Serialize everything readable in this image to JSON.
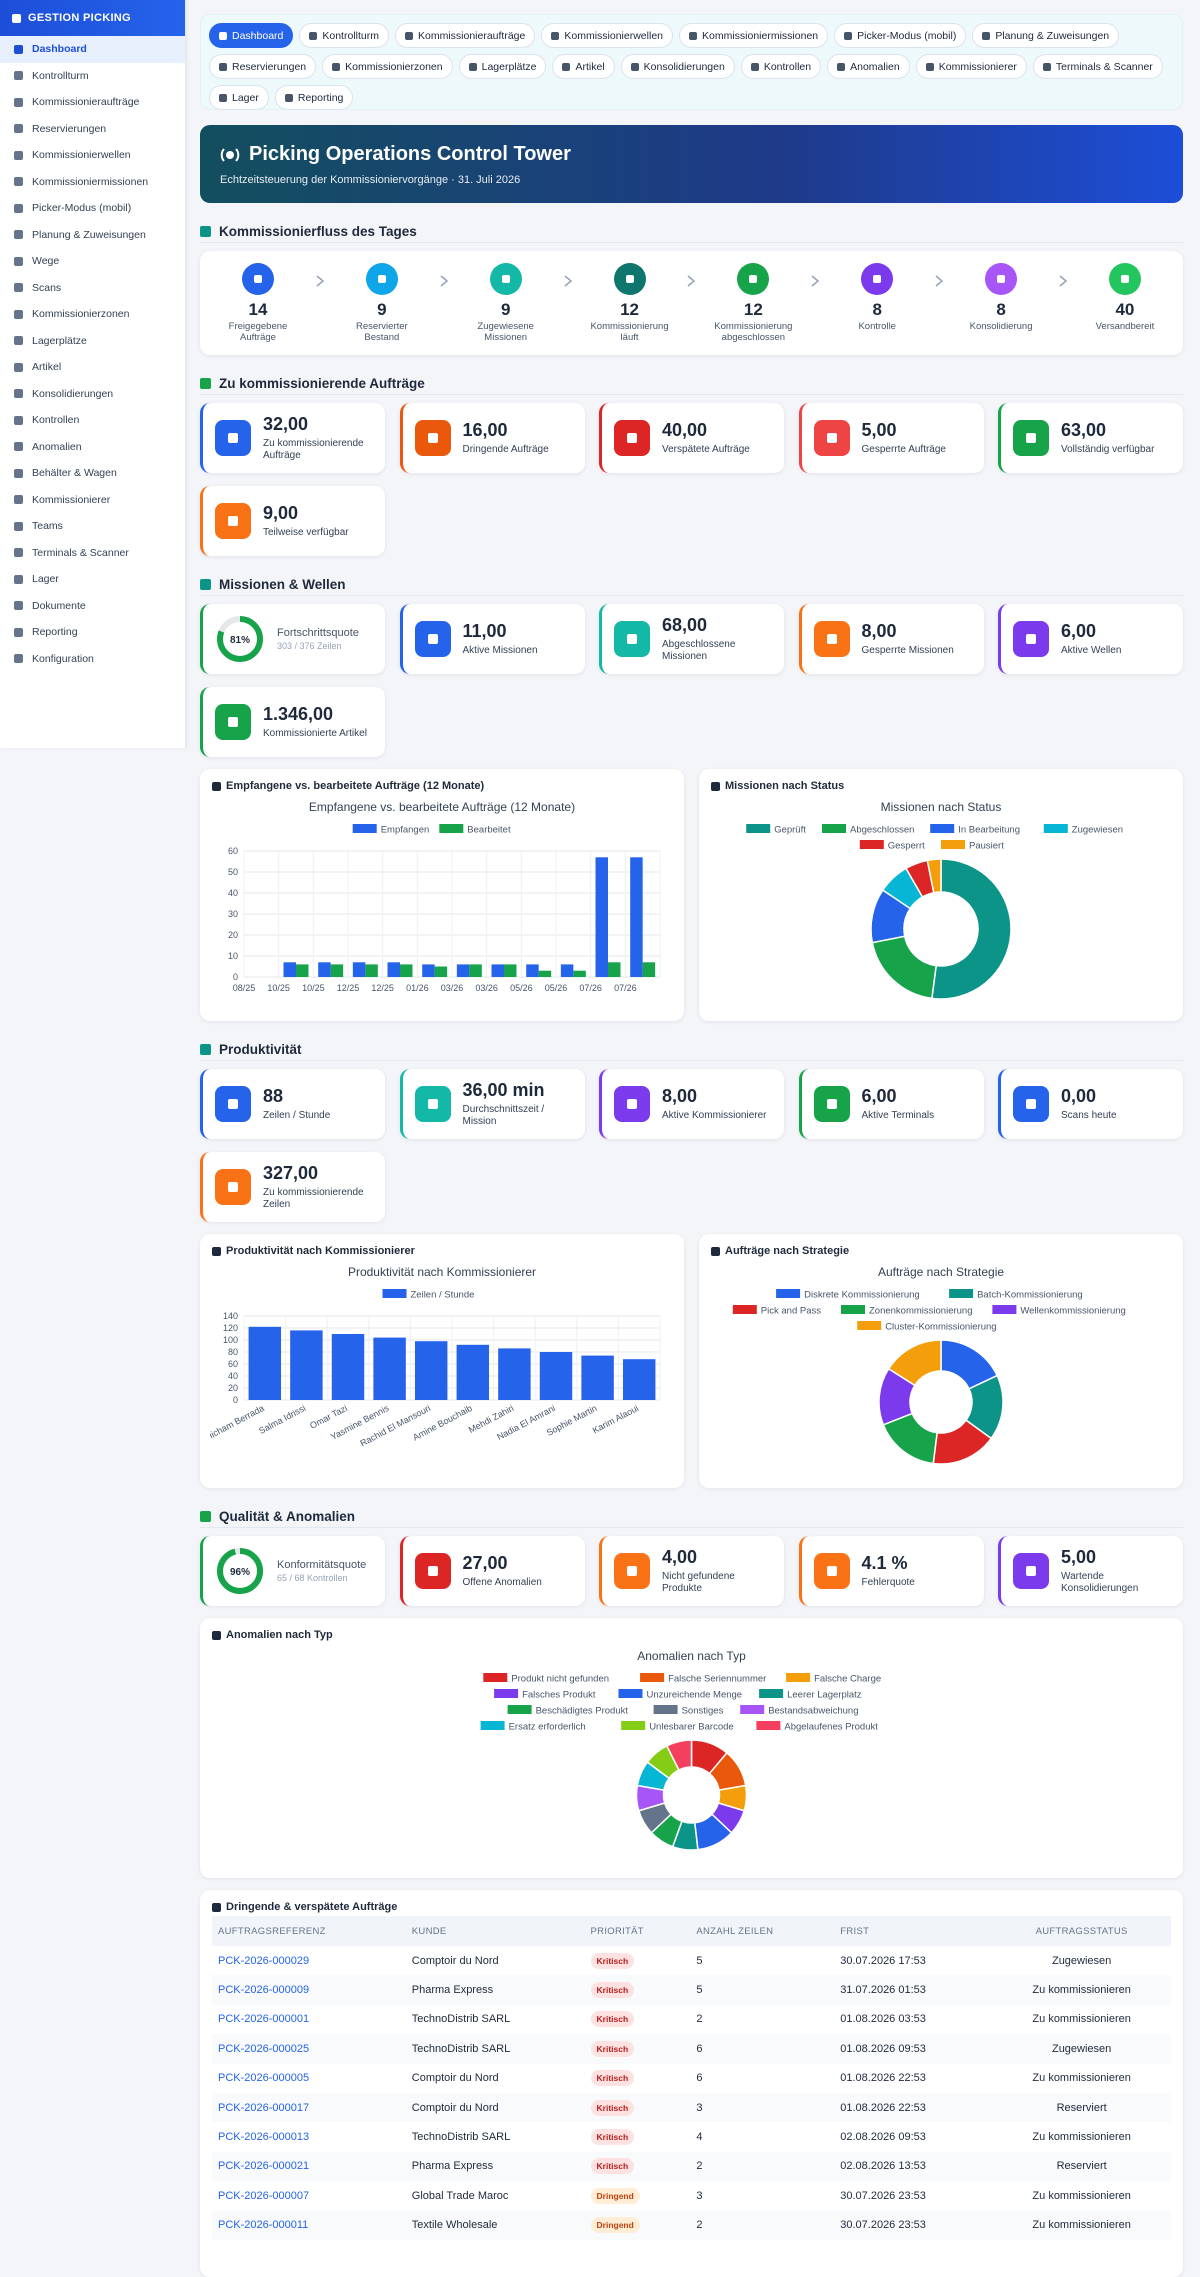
{
  "sidebar": {
    "brand": "GESTION PICKING",
    "items": [
      "Dashboard",
      "Kontrollturm",
      "Kommissionieraufträge",
      "Reservierungen",
      "Kommissionierwellen",
      "Kommissioniermissionen",
      "Picker-Modus (mobil)",
      "Planung & Zuweisungen",
      "Wege",
      "Scans",
      "Kommissionierzonen",
      "Lagerplätze",
      "Artikel",
      "Konsolidierungen",
      "Kontrollen",
      "Anomalien",
      "Behälter & Wagen",
      "Kommissionierer",
      "Teams",
      "Terminals & Scanner",
      "Lager",
      "Dokumente",
      "Reporting",
      "Konfiguration"
    ]
  },
  "tabs": [
    "Dashboard",
    "Kontrollturm",
    "Kommissionieraufträge",
    "Kommissionierwellen",
    "Kommissioniermissionen",
    "Picker-Modus (mobil)",
    "Planung & Zuweisungen",
    "Reservierungen",
    "Kommissionierzonen",
    "Lagerplätze",
    "Artikel",
    "Konsolidierungen",
    "Kontrollen",
    "Anomalien",
    "Kommissionierer",
    "Terminals & Scanner",
    "Lager",
    "Reporting"
  ],
  "hero": {
    "title": "Picking Operations Control Tower",
    "subtitle": "Echtzeitsteuerung der Kommissioniervorgänge · 31. Juli 2026"
  },
  "flow": {
    "title": "Kommissionierfluss des Tages",
    "steps": [
      {
        "value": 14,
        "label": "Freigegebene Aufträge",
        "color": "#2563eb"
      },
      {
        "value": 9,
        "label": "Reservierter Bestand",
        "color": "#0ea5e9"
      },
      {
        "value": 9,
        "label": "Zugewiesene Missionen",
        "color": "#14b8a6"
      },
      {
        "value": 12,
        "label": "Kommissionierung läuft",
        "color": "#0f766e"
      },
      {
        "value": 12,
        "label": "Kommissionierung abgeschlossen",
        "color": "#16a34a"
      },
      {
        "value": 8,
        "label": "Kontrolle",
        "color": "#7c3aed"
      },
      {
        "value": 8,
        "label": "Konsolidierung",
        "color": "#a855f7"
      },
      {
        "value": 40,
        "label": "Versandbereit",
        "color": "#22c55e"
      }
    ]
  },
  "orders": {
    "title": "Zu kommissionierende Aufträge",
    "cards": [
      {
        "value": "32,00",
        "label": "Zu kommissionierende Aufträge",
        "color": "#2563eb"
      },
      {
        "value": "16,00",
        "label": "Dringende Aufträge",
        "color": "#ea580c"
      },
      {
        "value": "40,00",
        "label": "Verspätete Aufträge",
        "color": "#dc2626"
      },
      {
        "value": "5,00",
        "label": "Gesperrte Aufträge",
        "color": "#ef4444"
      },
      {
        "value": "63,00",
        "label": "Vollständig verfügbar",
        "color": "#16a34a"
      },
      {
        "value": "9,00",
        "label": "Teilweise verfügbar",
        "color": "#f97316"
      }
    ]
  },
  "missions": {
    "title": "Missionen & Wellen",
    "cards": [
      {
        "ring": {
          "value": 81,
          "label": "81%"
        },
        "label": "Fortschrittsquote",
        "sub": "303 / 376 Zeilen",
        "color": "#16a34a"
      },
      {
        "value": "11,00",
        "label": "Aktive Missionen",
        "color": "#2563eb"
      },
      {
        "value": "68,00",
        "label": "Abgeschlossene Missionen",
        "color": "#14b8a6"
      },
      {
        "value": "8,00",
        "label": "Gesperrte Missionen",
        "color": "#f97316"
      },
      {
        "value": "6,00",
        "label": "Aktive Wellen",
        "color": "#7c3aed"
      },
      {
        "value": "1.346,00",
        "label": "Kommissionierte Artikel",
        "color": "#16a34a"
      }
    ]
  },
  "productivity": {
    "title": "Produktivität",
    "cards": [
      {
        "value": "88",
        "label": "Zeilen / Stunde",
        "color": "#2563eb"
      },
      {
        "value": "36,00 min",
        "label": "Durchschnittszeit / Mission",
        "color": "#14b8a6"
      },
      {
        "value": "8,00",
        "label": "Aktive Kommissionierer",
        "color": "#7c3aed"
      },
      {
        "value": "6,00",
        "label": "Aktive Terminals",
        "color": "#16a34a"
      },
      {
        "value": "0,00",
        "label": "Scans heute",
        "color": "#2563eb"
      },
      {
        "value": "327,00",
        "label": "Zu kommissionierende Zeilen",
        "color": "#f97316"
      }
    ]
  },
  "quality": {
    "title": "Qualität & Anomalien",
    "cards": [
      {
        "ring": {
          "value": 96,
          "label": "96%"
        },
        "label": "Konformitätsquote",
        "sub": "65 / 68 Kontrollen",
        "color": "#16a34a"
      },
      {
        "value": "27,00",
        "label": "Offene Anomalien",
        "color": "#dc2626"
      },
      {
        "value": "4,00",
        "label": "Nicht gefundene Produkte",
        "color": "#f97316"
      },
      {
        "value": "4.1 %",
        "label": "Fehlerquote",
        "color": "#f97316"
      },
      {
        "value": "5,00",
        "label": "Wartende Konsolidierungen",
        "color": "#7c3aed"
      }
    ]
  },
  "chart_data": [
    {
      "type": "bar",
      "card_title": "Empfangene vs. bearbeitete Aufträge (12 Monate)",
      "title": "Empfangene vs. bearbeitete Aufträge (12 Monate)",
      "categories": [
        "08/25",
        "10/25",
        "10/25",
        "12/25",
        "12/25",
        "01/26",
        "03/26",
        "03/26",
        "05/26",
        "05/26",
        "07/26",
        "07/26"
      ],
      "series": [
        {
          "name": "Empfangen",
          "color": "#2563eb",
          "values": [
            null,
            7,
            7,
            7,
            7,
            6,
            6,
            6,
            6,
            6,
            57,
            57
          ]
        },
        {
          "name": "Bearbeitet",
          "color": "#16a34a",
          "values": [
            null,
            6,
            6,
            6,
            6,
            5,
            6,
            6,
            3,
            3,
            7,
            7
          ]
        }
      ],
      "ylim": [
        0,
        60
      ],
      "yticks": [
        0,
        10,
        20,
        30,
        40,
        50,
        60
      ],
      "grid": true
    },
    {
      "type": "pie",
      "card_title": "Missionen nach Status",
      "title": "Missionen nach Status",
      "categories": [
        "Geprüft",
        "Abgeschlossen",
        "In Bearbeitung",
        "Zugewiesen",
        "Gesperrt",
        "Pausiert"
      ],
      "values": [
        50,
        19,
        12,
        7,
        5,
        3
      ],
      "colors": [
        "#0d9488",
        "#16a34a",
        "#2563eb",
        "#06b6d4",
        "#dc2626",
        "#f59e0b"
      ]
    },
    {
      "type": "bar",
      "card_title": "Produktivität nach Kommissionierer",
      "title": "Produktivität nach Kommissionierer",
      "categories": [
        "Hicham Berrada",
        "Salma Idrissi",
        "Omar Tazi",
        "Yasmine Bennis",
        "Rachid El Mansouri",
        "Amine Bouchaib",
        "Mehdi Zahiri",
        "Nadia El Amrani",
        "Sophie Martin",
        "Karim Alaoui"
      ],
      "series": [
        {
          "name": "Zeilen / Stunde",
          "color": "#2563eb",
          "values": [
            122,
            116,
            110,
            104,
            98,
            92,
            86,
            80,
            74,
            68
          ]
        }
      ],
      "ylim": [
        0,
        140
      ],
      "yticks": [
        0,
        20,
        40,
        60,
        80,
        100,
        120,
        140
      ],
      "grid": true
    },
    {
      "type": "pie",
      "card_title": "Aufträge nach Strategie",
      "title": "Aufträge nach Strategie",
      "categories": [
        "Diskrete Kommissionierung",
        "Batch-Kommissionierung",
        "Pick and Pass",
        "Zonenkommissionierung",
        "Wellenkommissionierung",
        "Cluster-Kommissionierung"
      ],
      "values": [
        18,
        17,
        17,
        17,
        15,
        16
      ],
      "colors": [
        "#2563eb",
        "#0d9488",
        "#dc2626",
        "#16a34a",
        "#7c3aed",
        "#f59e0b"
      ]
    },
    {
      "type": "pie",
      "card_title": "Anomalien nach Typ",
      "title": "Anomalien nach Typ",
      "categories": [
        "Produkt nicht gefunden",
        "Falsche Seriennummer",
        "Falsche Charge",
        "Falsches Produkt",
        "Unzureichende Menge",
        "Leerer Lagerplatz",
        "Beschädigtes Produkt",
        "Sonstiges",
        "Bestandsabweichung",
        "Ersatz erforderlich",
        "Unlesbarer Barcode",
        "Abgelaufenes Produkt"
      ],
      "values": [
        3,
        3,
        2,
        2,
        3,
        2,
        2,
        2,
        2,
        2,
        2,
        2
      ],
      "colors": [
        "#dc2626",
        "#ea580c",
        "#f59e0b",
        "#7c3aed",
        "#2563eb",
        "#0d9488",
        "#16a34a",
        "#64748b",
        "#a855f7",
        "#06b6d4",
        "#84cc16",
        "#f43f5e"
      ]
    }
  ],
  "table": {
    "title": "Dringende & verspätete Aufträge",
    "headers": [
      "AUFTRAGSREFERENZ",
      "KUNDE",
      "PRIORITÄT",
      "ANZAHL ZEILEN",
      "FRIST",
      "AUFTRAGSSTATUS"
    ],
    "rows": [
      [
        "PCK-2026-000029",
        "Comptoir du Nord",
        "Kritisch",
        5,
        "30.07.2026 17:53",
        "Zugewiesen"
      ],
      [
        "PCK-2026-000009",
        "Pharma Express",
        "Kritisch",
        5,
        "31.07.2026 01:53",
        "Zu kommissionieren"
      ],
      [
        "PCK-2026-000001",
        "TechnoDistrib SARL",
        "Kritisch",
        2,
        "01.08.2026 03:53",
        "Zu kommissionieren"
      ],
      [
        "PCK-2026-000025",
        "TechnoDistrib SARL",
        "Kritisch",
        6,
        "01.08.2026 09:53",
        "Zugewiesen"
      ],
      [
        "PCK-2026-000005",
        "Comptoir du Nord",
        "Kritisch",
        6,
        "01.08.2026 22:53",
        "Zu kommissionieren"
      ],
      [
        "PCK-2026-000017",
        "Comptoir du Nord",
        "Kritisch",
        3,
        "01.08.2026 22:53",
        "Reserviert"
      ],
      [
        "PCK-2026-000013",
        "TechnoDistrib SARL",
        "Kritisch",
        4,
        "02.08.2026 09:53",
        "Zu kommissionieren"
      ],
      [
        "PCK-2026-000021",
        "Pharma Express",
        "Kritisch",
        2,
        "02.08.2026 13:53",
        "Reserviert"
      ],
      [
        "PCK-2026-000007",
        "Global Trade Maroc",
        "Dringend",
        3,
        "30.07.2026 23:53",
        "Zu kommissionieren"
      ],
      [
        "PCK-2026-000011",
        "Textile Wholesale",
        "Dringend",
        2,
        "30.07.2026 23:53",
        "Zu kommissionieren"
      ]
    ]
  }
}
